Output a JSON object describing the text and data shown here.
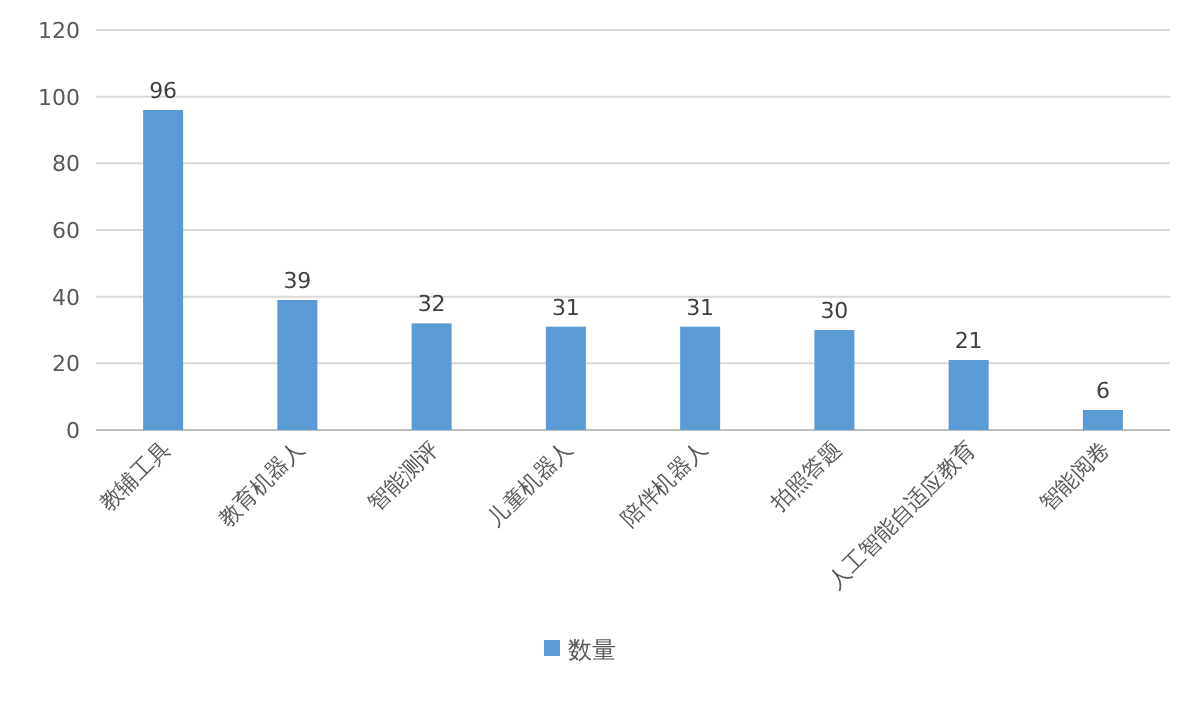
{
  "chart_data": {
    "type": "bar",
    "categories": [
      "教辅工具",
      "教育机器人",
      "智能测评",
      "儿童机器人",
      "陪伴机器人",
      "拍照答题",
      "人工智能自适应教育",
      "智能阅卷"
    ],
    "series": [
      {
        "name": "数量",
        "color": "#5b9bd5",
        "values": [
          96,
          39,
          32,
          31,
          31,
          30,
          21,
          6
        ]
      }
    ],
    "ylim": [
      0,
      120
    ],
    "yticks": [
      0,
      20,
      40,
      60,
      80,
      100,
      120
    ],
    "grid": "y",
    "legend": "bottom",
    "data_labels": true
  }
}
